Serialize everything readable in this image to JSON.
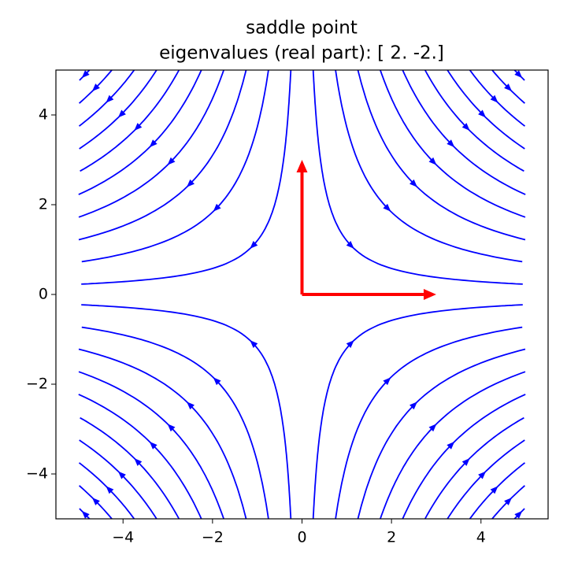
{
  "chart_data": {
    "type": "streamplot",
    "title": "saddle point",
    "subtitle": "eigenvalues (real part): [ 2. -2.]",
    "matrix": [
      [
        2,
        0
      ],
      [
        0,
        -2
      ]
    ],
    "color": "#0000ff",
    "arrows": [
      {
        "x": 3,
        "y": 0
      },
      {
        "x": 0,
        "y": 3
      }
    ],
    "arrow_color": "#ff0000",
    "xlim": [
      -5.5,
      5.5
    ],
    "ylim": [
      -5,
      5
    ],
    "xticks": [
      {
        "value": -4,
        "label": "−4"
      },
      {
        "value": -2,
        "label": "−2"
      },
      0,
      2,
      4
    ],
    "yticks": [
      {
        "value": -4,
        "label": "−4"
      },
      {
        "value": -2,
        "label": "−2"
      },
      0,
      2,
      4
    ]
  }
}
